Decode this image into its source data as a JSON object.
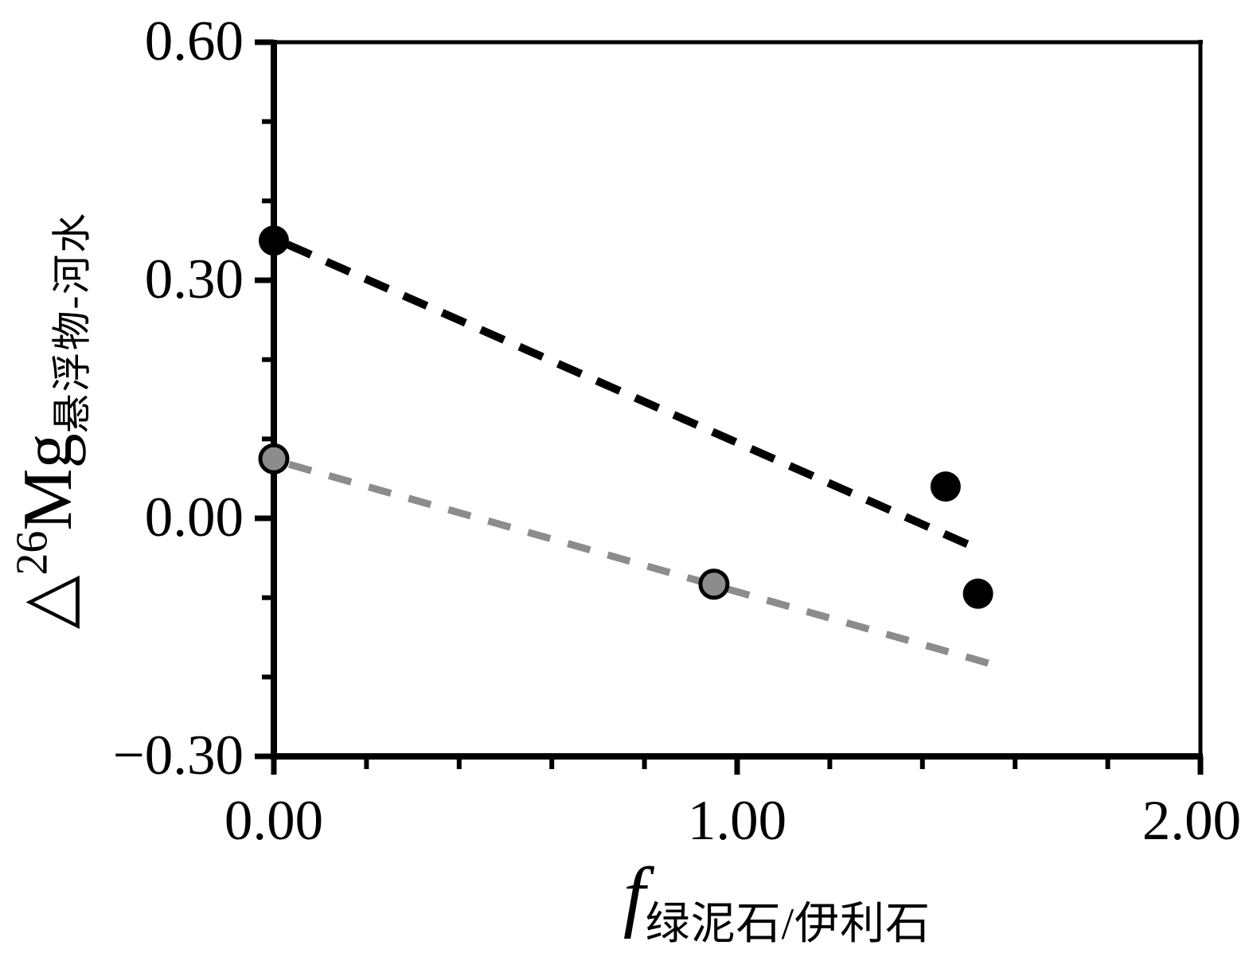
{
  "figure": {
    "background_color": "#ffffff",
    "axis_color": "#000000"
  },
  "chart_data": {
    "type": "scatter",
    "title": "",
    "xlabel": {
      "main": "f",
      "sub": "绿泥石/伊利石"
    },
    "ylabel": {
      "prefix": "△",
      "sup": "26",
      "main": "Mg",
      "sub": "悬浮物-河水"
    },
    "xlim": [
      0.0,
      2.0
    ],
    "ylim": [
      -0.3,
      0.6
    ],
    "grid": false,
    "legend": null,
    "x_axis": {
      "major_ticks": [
        {
          "v": 0.0,
          "label": "0.00"
        },
        {
          "v": 1.0,
          "label": "1.00"
        },
        {
          "v": 2.0,
          "label": "2.00"
        }
      ],
      "minor_ticks": [
        0.2,
        0.4,
        0.6,
        0.8,
        1.2,
        1.4,
        1.6,
        1.8
      ]
    },
    "y_axis": {
      "major_ticks": [
        {
          "v": 0.6,
          "label": "0.60"
        },
        {
          "v": 0.3,
          "label": "0.30"
        },
        {
          "v": 0.0,
          "label": "0.00"
        },
        {
          "v": -0.3,
          "label": "−0.30"
        }
      ],
      "minor_ticks": [
        0.5,
        0.4,
        0.2,
        0.1,
        -0.1,
        -0.2
      ]
    },
    "series": [
      {
        "name": "black-series",
        "marker": "circle",
        "color": "#000000",
        "outline": null,
        "points": [
          [
            0.0,
            0.35
          ],
          [
            1.45,
            0.04
          ],
          [
            1.52,
            -0.095
          ]
        ],
        "trend_line": {
          "style": "dashed",
          "x1": 0.03,
          "y1": 0.345,
          "x2": 1.526,
          "y2": -0.04
        }
      },
      {
        "name": "gray-series",
        "marker": "circle",
        "color": "#8c8c8c",
        "outline": "#000000",
        "points": [
          [
            0.0,
            0.075
          ],
          [
            0.95,
            -0.083
          ]
        ],
        "trend_line": {
          "style": "dashed",
          "x1": 0.033,
          "y1": 0.068,
          "x2": 1.557,
          "y2": -0.185
        }
      }
    ]
  }
}
